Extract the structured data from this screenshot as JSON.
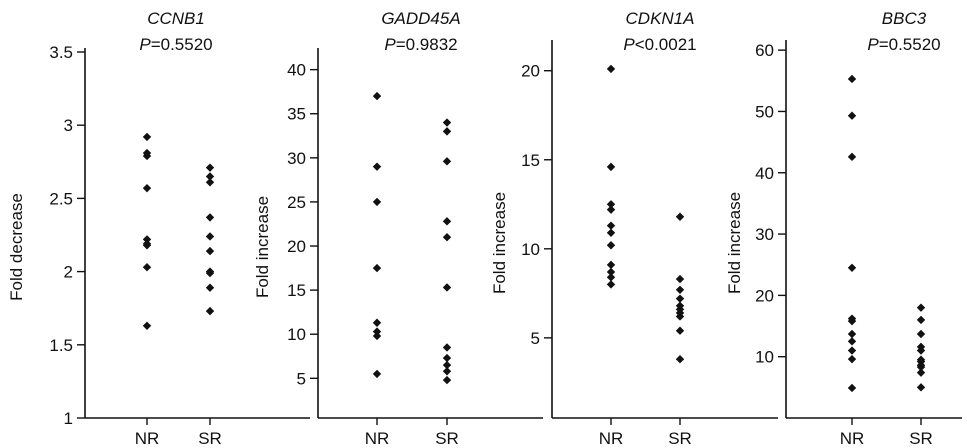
{
  "chart_data": [
    {
      "type": "scatter",
      "title": "CCNB1",
      "p_prefix": "P",
      "p_text": "=0.5520",
      "ylabel": "Fold decrease",
      "ylim": [
        1,
        3.5
      ],
      "yticks": [
        1,
        1.5,
        2,
        2.5,
        3,
        3.5
      ],
      "ytick_labels": [
        "1",
        "1.5",
        "2",
        "2.5",
        "3",
        "3.5"
      ],
      "categories": [
        "NR",
        "SR"
      ],
      "series": [
        {
          "values": [
            2.92,
            2.81,
            2.79,
            2.57,
            2.22,
            2.19,
            2.18,
            2.03,
            1.63
          ]
        },
        {
          "values": [
            2.71,
            2.65,
            2.61,
            2.37,
            2.24,
            2.14,
            2.0,
            1.99,
            1.89,
            1.73
          ]
        }
      ]
    },
    {
      "type": "scatter",
      "title": "GADD45A",
      "p_prefix": "P",
      "p_text": "=0.9832",
      "ylabel": "Fold increase",
      "ylim": [
        0.5,
        42
      ],
      "yticks": [
        5,
        10,
        15,
        20,
        25,
        30,
        35,
        40
      ],
      "ytick_labels": [
        "5",
        "10",
        "15",
        "20",
        "25",
        "30",
        "35",
        "40"
      ],
      "categories": [
        "NR",
        "SR"
      ],
      "series": [
        {
          "values": [
            37,
            29,
            25,
            17.5,
            11.3,
            10.3,
            9.8,
            5.5
          ]
        },
        {
          "values": [
            34,
            33,
            29.6,
            22.8,
            21,
            15.3,
            8.5,
            7.3,
            6.5,
            5.8,
            4.8
          ]
        }
      ]
    },
    {
      "type": "scatter",
      "title": "CDKN1A",
      "p_prefix": "P",
      "p_text": "<0.0021",
      "ylabel": "Fold increase",
      "ylim": [
        0.5,
        21.5
      ],
      "yticks": [
        5,
        10,
        15,
        20
      ],
      "ytick_labels": [
        "5",
        "10",
        "15",
        "20"
      ],
      "categories": [
        "NR",
        "SR"
      ],
      "series": [
        {
          "values": [
            20.1,
            14.6,
            12.5,
            12.2,
            11.3,
            10.9,
            10.2,
            9.1,
            8.7,
            8.4,
            8.0
          ]
        },
        {
          "values": [
            11.8,
            8.3,
            7.7,
            7.2,
            6.8,
            6.6,
            6.4,
            6.2,
            5.4,
            3.8
          ]
        }
      ]
    },
    {
      "type": "scatter",
      "title": "BBC3",
      "p_prefix": "P",
      "p_text": "=0.5520",
      "ylabel": "Fold increase",
      "ylim": [
        0,
        61
      ],
      "yticks": [
        10,
        20,
        30,
        40,
        50,
        60
      ],
      "ytick_labels": [
        "10",
        "20",
        "30",
        "40",
        "50",
        "60"
      ],
      "categories": [
        "NR",
        "SR"
      ],
      "series": [
        {
          "values": [
            55.3,
            49.3,
            42.6,
            24.5,
            16.2,
            15.8,
            13.7,
            12.5,
            11.0,
            9.6,
            4.9
          ]
        },
        {
          "values": [
            18.0,
            16.0,
            13.7,
            11.6,
            11.0,
            9.5,
            9.2,
            8.6,
            8.3,
            7.4,
            5.0
          ]
        }
      ]
    }
  ]
}
